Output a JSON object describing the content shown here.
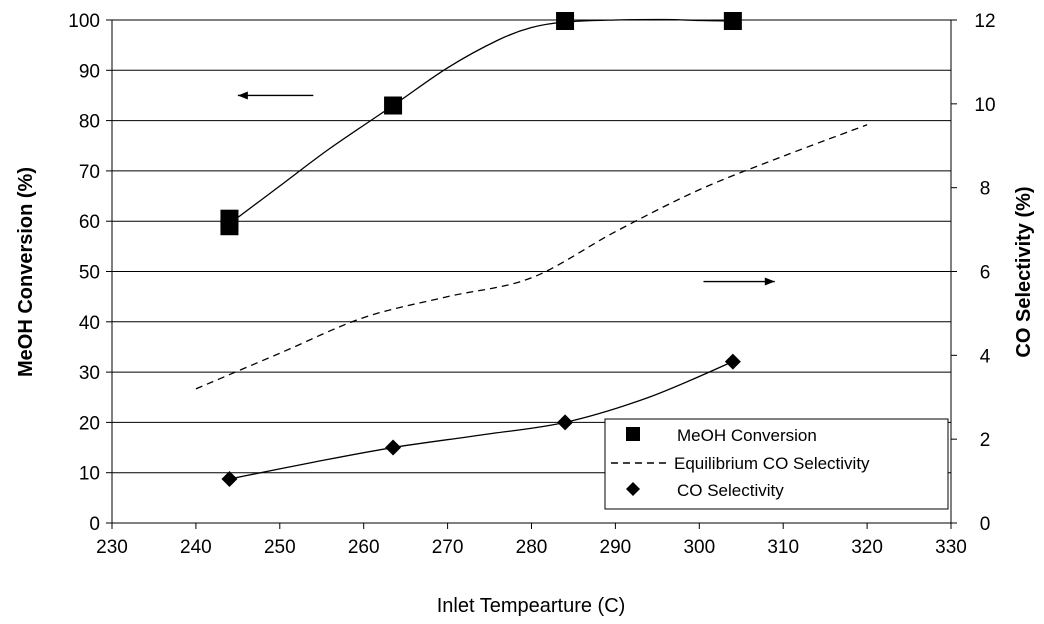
{
  "chart_data": {
    "type": "scatter",
    "xlabel": "Inlet Tempearture (C)",
    "ylabel_left": "MeOH Conversion (%)",
    "ylabel_right": "CO Selectivity (%)",
    "xlim": [
      230,
      330
    ],
    "xticks": [
      230,
      240,
      250,
      260,
      270,
      280,
      290,
      300,
      310,
      320,
      330
    ],
    "ylim_left": [
      0,
      100
    ],
    "yticks_left": [
      0,
      10,
      20,
      30,
      40,
      50,
      60,
      70,
      80,
      90,
      100
    ],
    "ylim_right": [
      0,
      12
    ],
    "yticks_right": [
      0,
      2,
      4,
      6,
      8,
      10,
      12
    ],
    "grid": "horizontal",
    "legend_position": "bottom-right",
    "series": [
      {
        "name": "MeOH Conversion",
        "axis": "left",
        "marker": "square",
        "line": "solid",
        "points": [
          [
            244,
            59
          ],
          [
            244,
            60.5
          ],
          [
            263.5,
            83
          ],
          [
            284,
            99.8
          ],
          [
            304,
            99.8
          ]
        ],
        "curve": [
          [
            244,
            59.5
          ],
          [
            250,
            67
          ],
          [
            256,
            74.5
          ],
          [
            263.5,
            83
          ],
          [
            270,
            90.5
          ],
          [
            276,
            96
          ],
          [
            280,
            98.5
          ],
          [
            284,
            99.6
          ],
          [
            290,
            100
          ],
          [
            296,
            100.1
          ],
          [
            300,
            99.9
          ],
          [
            304,
            99.8
          ]
        ]
      },
      {
        "name": "Equilibrium CO Selectivity",
        "axis": "right",
        "marker": "none",
        "line": "dashed",
        "points": [
          [
            240,
            3.2
          ],
          [
            250,
            4.05
          ],
          [
            260,
            4.9
          ],
          [
            270,
            5.4
          ],
          [
            280,
            5.85
          ],
          [
            290,
            6.95
          ],
          [
            300,
            7.95
          ],
          [
            310,
            8.75
          ],
          [
            320,
            9.5
          ]
        ]
      },
      {
        "name": "CO Selectivity",
        "axis": "right",
        "marker": "diamond",
        "line": "solid",
        "points": [
          [
            244,
            1.05
          ],
          [
            263.5,
            1.8
          ],
          [
            284,
            2.4
          ],
          [
            304,
            3.85
          ]
        ],
        "curve": [
          [
            244,
            1.05
          ],
          [
            254,
            1.45
          ],
          [
            263.5,
            1.8
          ],
          [
            274,
            2.1
          ],
          [
            284,
            2.4
          ],
          [
            294,
            3.0
          ],
          [
            304,
            3.85
          ]
        ]
      }
    ],
    "annotations": [
      {
        "name": "left-arrow",
        "from": [
          254,
          85
        ],
        "to": [
          245,
          85
        ],
        "axis": "left"
      },
      {
        "name": "right-arrow",
        "from": [
          300.5,
          48
        ],
        "to": [
          309,
          48
        ],
        "axis": "left"
      }
    ]
  }
}
